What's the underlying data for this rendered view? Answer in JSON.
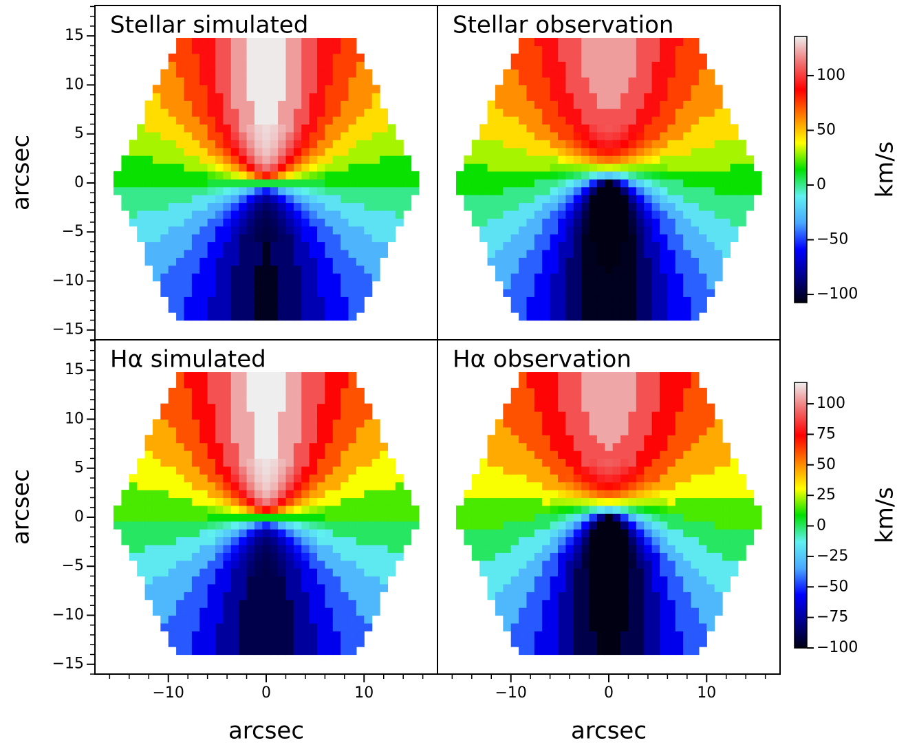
{
  "chart_data": [
    {
      "type": "heatmap",
      "title": "Stellar simulated",
      "ylabel": "arcsec",
      "xlim": [
        -17.5,
        17.5
      ],
      "ylim": [
        -16,
        18.1
      ],
      "yticks": [
        {
          "value": -15,
          "label": "−15"
        },
        {
          "value": -10,
          "label": "−10"
        },
        {
          "value": -5,
          "label": "−5"
        },
        0,
        5,
        10,
        15
      ],
      "yminorticks": [
        -16,
        -14,
        -13,
        -12,
        -11,
        -9,
        -8,
        -7,
        -6,
        -4,
        -3,
        -2,
        -1,
        1,
        2,
        3,
        4,
        6,
        7,
        8,
        9,
        11,
        12,
        13,
        14,
        16,
        17,
        18
      ]
    },
    {
      "type": "heatmap",
      "title": "Stellar observation",
      "xlim": [
        -17.5,
        17.5
      ],
      "ylim": [
        -16,
        18.1
      ],
      "colorbar": {
        "label": "km/s",
        "clim": [
          -107.5,
          135.8
        ],
        "ticks": [
          {
            "value": -100,
            "label": "−100"
          },
          {
            "value": -50,
            "label": "−50"
          },
          0,
          50,
          100
        ]
      }
    },
    {
      "type": "heatmap",
      "title": "Hα simulated",
      "xlabel": "arcsec",
      "ylabel": "arcsec",
      "xlim": [
        -17.5,
        17.5
      ],
      "ylim": [
        -16,
        18.1
      ],
      "xticks": [
        {
          "value": -10,
          "label": "−10"
        },
        0,
        10
      ],
      "xminorticks": [
        -16,
        -14,
        -12,
        -8,
        -6,
        -4,
        -2,
        2,
        4,
        6,
        8,
        12,
        14,
        16
      ],
      "yticks": [
        {
          "value": -15,
          "label": "−15"
        },
        {
          "value": -10,
          "label": "−10"
        },
        {
          "value": -5,
          "label": "−5"
        },
        0,
        5,
        10,
        15
      ],
      "yminorticks": [
        -16,
        -14,
        -13,
        -12,
        -11,
        -9,
        -8,
        -7,
        -6,
        -4,
        -3,
        -2,
        -1,
        1,
        2,
        3,
        4,
        6,
        7,
        8,
        9,
        11,
        12,
        13,
        14,
        16,
        17,
        18
      ]
    },
    {
      "type": "heatmap",
      "title": "Hα observation",
      "xlabel": "arcsec",
      "xlim": [
        -17.5,
        17.5
      ],
      "ylim": [
        -16,
        18.1
      ],
      "xticks": [
        {
          "value": -10,
          "label": "−10"
        },
        0,
        10
      ],
      "xminorticks": [
        -16,
        -14,
        -12,
        -8,
        -6,
        -4,
        -2,
        2,
        4,
        6,
        8,
        12,
        14,
        16
      ],
      "colorbar": {
        "label": "km/s",
        "clim": [
          -100,
          117.5
        ],
        "ticks": [
          {
            "value": -100,
            "label": "−100"
          },
          {
            "value": -75,
            "label": "−75"
          },
          {
            "value": -50,
            "label": "−50"
          },
          {
            "value": -25,
            "label": "−25"
          },
          0,
          25,
          50,
          75,
          100
        ]
      }
    }
  ],
  "colormap": [
    "#000012",
    "#00008c",
    "#0000ff",
    "#4aa8ff",
    "#60f0f0",
    "#00e000",
    "#ffff00",
    "#ff8000",
    "#ff0000",
    "#f07070",
    "#eeeeee"
  ]
}
